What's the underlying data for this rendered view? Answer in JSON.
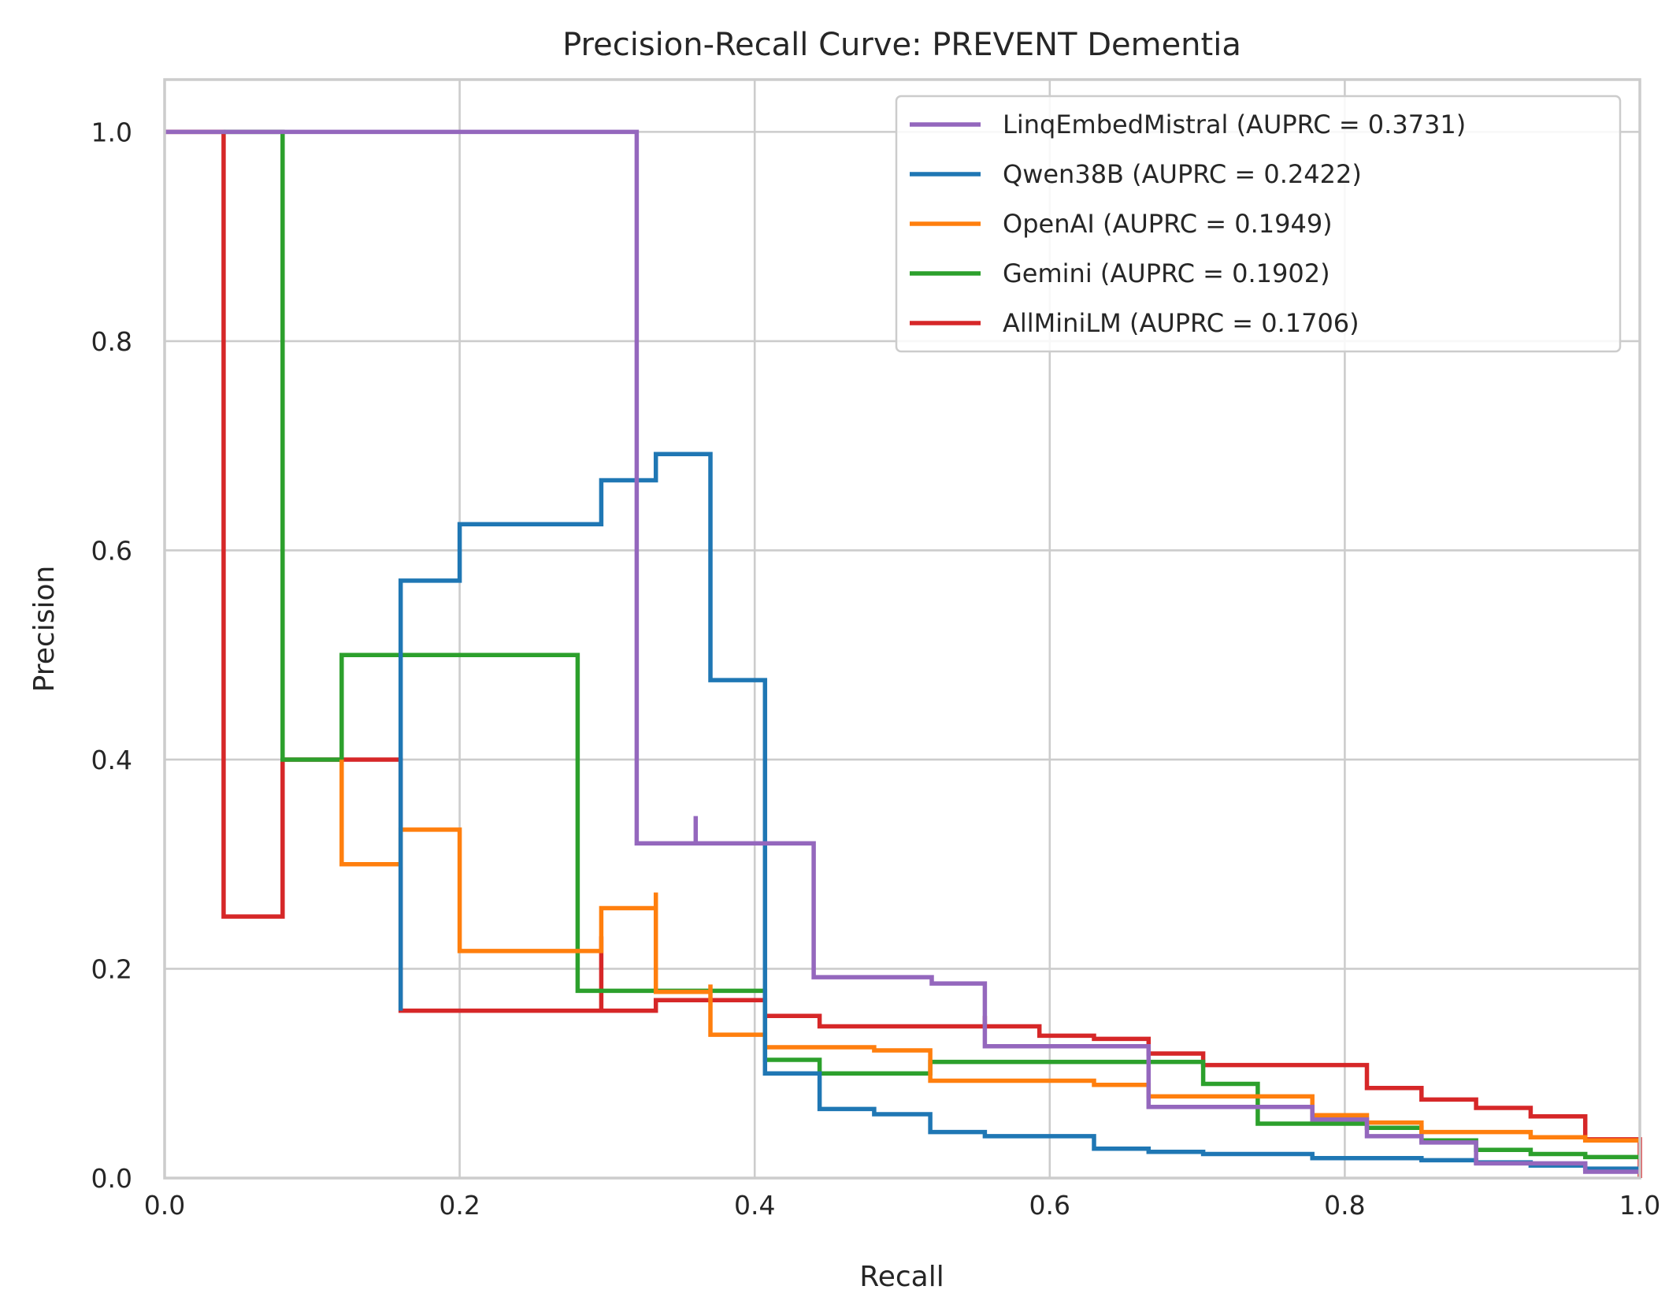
{
  "chart_data": {
    "type": "line",
    "title": "Precision-Recall Curve: PREVENT Dementia",
    "xlabel": "Recall",
    "ylabel": "Precision",
    "xlim": [
      0,
      1
    ],
    "ylim": [
      0,
      1.05
    ],
    "x_ticks": [
      "0.0",
      "0.2",
      "0.4",
      "0.6",
      "0.8",
      "1.0"
    ],
    "y_ticks": [
      "0.0",
      "0.2",
      "0.4",
      "0.6",
      "0.8",
      "1.0"
    ],
    "grid": true,
    "legend_position": "top-right",
    "series": [
      {
        "name": "LinqEmbedMistral (AUPRC = 0.3731)",
        "color": "#9467bd",
        "step": true,
        "points": [
          [
            0,
            1.0
          ],
          [
            0.32,
            1.0
          ],
          [
            0.32,
            0.32
          ],
          [
            0.36,
            0.32
          ],
          [
            0.36,
            0.346
          ],
          [
            0.36,
            0.32
          ],
          [
            0.44,
            0.32
          ],
          [
            0.44,
            0.192
          ],
          [
            0.52,
            0.192
          ],
          [
            0.52,
            0.186
          ],
          [
            0.556,
            0.186
          ],
          [
            0.556,
            0.126
          ],
          [
            0.667,
            0.126
          ],
          [
            0.667,
            0.068
          ],
          [
            0.778,
            0.068
          ],
          [
            0.778,
            0.056
          ],
          [
            0.815,
            0.056
          ],
          [
            0.815,
            0.04
          ],
          [
            0.852,
            0.04
          ],
          [
            0.852,
            0.034
          ],
          [
            0.889,
            0.034
          ],
          [
            0.889,
            0.014
          ],
          [
            0.963,
            0.014
          ],
          [
            0.963,
            0.006
          ],
          [
            1.0,
            0.006
          ]
        ]
      },
      {
        "name": "Qwen38B (AUPRC = 0.2422)",
        "color": "#1f77b4",
        "step": true,
        "points": [
          [
            0.16,
            0.16
          ],
          [
            0.16,
            0.571
          ],
          [
            0.2,
            0.571
          ],
          [
            0.2,
            0.625
          ],
          [
            0.296,
            0.625
          ],
          [
            0.296,
            0.667
          ],
          [
            0.333,
            0.667
          ],
          [
            0.333,
            0.692
          ],
          [
            0.37,
            0.692
          ],
          [
            0.37,
            0.476
          ],
          [
            0.407,
            0.476
          ],
          [
            0.407,
            0.1
          ],
          [
            0.444,
            0.1
          ],
          [
            0.444,
            0.066
          ],
          [
            0.481,
            0.066
          ],
          [
            0.481,
            0.061
          ],
          [
            0.519,
            0.061
          ],
          [
            0.519,
            0.044
          ],
          [
            0.556,
            0.044
          ],
          [
            0.556,
            0.04
          ],
          [
            0.63,
            0.04
          ],
          [
            0.63,
            0.028
          ],
          [
            0.667,
            0.028
          ],
          [
            0.667,
            0.025
          ],
          [
            0.704,
            0.025
          ],
          [
            0.704,
            0.023
          ],
          [
            0.778,
            0.023
          ],
          [
            0.778,
            0.019
          ],
          [
            0.852,
            0.019
          ],
          [
            0.852,
            0.017
          ],
          [
            0.889,
            0.017
          ],
          [
            0.889,
            0.015
          ],
          [
            0.926,
            0.015
          ],
          [
            0.926,
            0.012
          ],
          [
            0.963,
            0.012
          ],
          [
            0.963,
            0.009
          ],
          [
            1.0,
            0.009
          ]
        ]
      },
      {
        "name": "OpenAI (AUPRC = 0.1949)",
        "color": "#ff7f0e",
        "step": true,
        "points": [
          [
            0.12,
            0.4
          ],
          [
            0.12,
            0.3
          ],
          [
            0.16,
            0.3
          ],
          [
            0.16,
            0.333
          ],
          [
            0.2,
            0.333
          ],
          [
            0.2,
            0.217
          ],
          [
            0.296,
            0.217
          ],
          [
            0.296,
            0.258
          ],
          [
            0.333,
            0.258
          ],
          [
            0.333,
            0.273
          ],
          [
            0.333,
            0.178
          ],
          [
            0.37,
            0.178
          ],
          [
            0.37,
            0.185
          ],
          [
            0.37,
            0.137
          ],
          [
            0.407,
            0.137
          ],
          [
            0.407,
            0.125
          ],
          [
            0.481,
            0.125
          ],
          [
            0.481,
            0.122
          ],
          [
            0.519,
            0.122
          ],
          [
            0.519,
            0.093
          ],
          [
            0.63,
            0.093
          ],
          [
            0.63,
            0.089
          ],
          [
            0.667,
            0.089
          ],
          [
            0.667,
            0.078
          ],
          [
            0.778,
            0.078
          ],
          [
            0.778,
            0.06
          ],
          [
            0.815,
            0.06
          ],
          [
            0.815,
            0.053
          ],
          [
            0.852,
            0.053
          ],
          [
            0.852,
            0.044
          ],
          [
            0.926,
            0.044
          ],
          [
            0.926,
            0.039
          ],
          [
            0.963,
            0.039
          ],
          [
            0.963,
            0.036
          ],
          [
            1.0,
            0.036
          ]
        ]
      },
      {
        "name": "Gemini (AUPRC = 0.1902)",
        "color": "#2ca02c",
        "step": true,
        "points": [
          [
            0.04,
            1.0
          ],
          [
            0.08,
            1.0
          ],
          [
            0.08,
            0.4
          ],
          [
            0.12,
            0.4
          ],
          [
            0.12,
            0.5
          ],
          [
            0.28,
            0.5
          ],
          [
            0.28,
            0.179
          ],
          [
            0.407,
            0.179
          ],
          [
            0.407,
            0.113
          ],
          [
            0.444,
            0.113
          ],
          [
            0.444,
            0.1
          ],
          [
            0.519,
            0.1
          ],
          [
            0.519,
            0.111
          ],
          [
            0.704,
            0.111
          ],
          [
            0.704,
            0.09
          ],
          [
            0.741,
            0.09
          ],
          [
            0.741,
            0.052
          ],
          [
            0.815,
            0.052
          ],
          [
            0.815,
            0.048
          ],
          [
            0.852,
            0.048
          ],
          [
            0.852,
            0.036
          ],
          [
            0.889,
            0.036
          ],
          [
            0.889,
            0.027
          ],
          [
            0.926,
            0.027
          ],
          [
            0.926,
            0.023
          ],
          [
            0.963,
            0.023
          ],
          [
            0.963,
            0.02
          ],
          [
            1.0,
            0.02
          ]
        ]
      },
      {
        "name": "AllMiniLM (AUPRC = 0.1706)",
        "color": "#d62728",
        "step": true,
        "points": [
          [
            0,
            1.0
          ],
          [
            0.04,
            1.0
          ],
          [
            0.04,
            0.25
          ],
          [
            0.08,
            0.25
          ],
          [
            0.08,
            0.4
          ],
          [
            0.16,
            0.4
          ],
          [
            0.16,
            0.16
          ],
          [
            0.296,
            0.16
          ],
          [
            0.296,
            0.231
          ],
          [
            0.296,
            0.16
          ],
          [
            0.333,
            0.16
          ],
          [
            0.333,
            0.17
          ],
          [
            0.407,
            0.17
          ],
          [
            0.407,
            0.155
          ],
          [
            0.444,
            0.155
          ],
          [
            0.444,
            0.145
          ],
          [
            0.556,
            0.145
          ],
          [
            0.556,
            0.155
          ],
          [
            0.556,
            0.145
          ],
          [
            0.593,
            0.145
          ],
          [
            0.593,
            0.136
          ],
          [
            0.63,
            0.136
          ],
          [
            0.63,
            0.133
          ],
          [
            0.667,
            0.133
          ],
          [
            0.667,
            0.119
          ],
          [
            0.704,
            0.119
          ],
          [
            0.704,
            0.108
          ],
          [
            0.815,
            0.108
          ],
          [
            0.815,
            0.086
          ],
          [
            0.852,
            0.086
          ],
          [
            0.852,
            0.075
          ],
          [
            0.889,
            0.075
          ],
          [
            0.889,
            0.067
          ],
          [
            0.926,
            0.067
          ],
          [
            0.926,
            0.059
          ],
          [
            0.963,
            0.059
          ],
          [
            0.963,
            0.037
          ],
          [
            1.0,
            0.037
          ],
          [
            1.0,
            0.0
          ]
        ]
      }
    ]
  }
}
